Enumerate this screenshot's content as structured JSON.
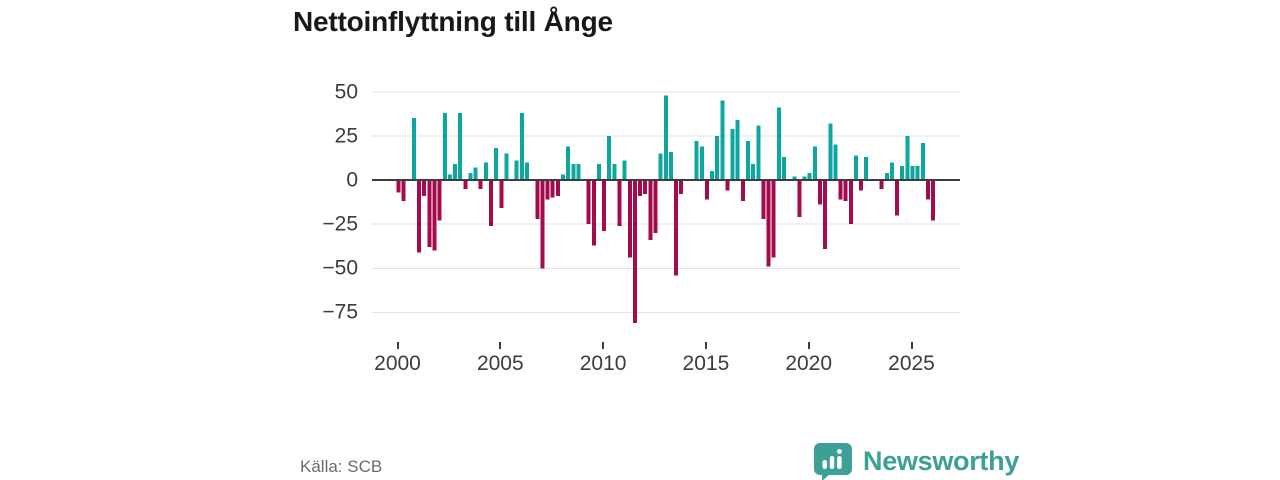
{
  "title": "Nettoinflyttning till Ånge",
  "source": "Källa: SCB",
  "branding": {
    "name": "Newsworthy",
    "icon": "newsworthy-logo-icon",
    "wordmark_color": "#3da096",
    "icon_color": "#3da096"
  },
  "chart_data": {
    "type": "bar",
    "title": "Nettoinflyttning till Ånge",
    "xlabel": "",
    "ylabel": "",
    "frequency": "quarterly",
    "start_period": "2000 Q1",
    "end_period": "2026 Q1",
    "values": [
      -7,
      -12,
      0,
      35,
      -41,
      -9,
      -38,
      -40,
      -23,
      38,
      3,
      9,
      38,
      -5,
      4,
      7,
      -5,
      10,
      -26,
      18,
      -16,
      15,
      0,
      11,
      38,
      10,
      0,
      -22,
      -50,
      -11,
      -10,
      -9,
      3,
      19,
      9,
      9,
      0,
      -25,
      -37,
      9,
      -29,
      25,
      9,
      -26,
      11,
      -44,
      -81,
      -9,
      -8,
      -34,
      -30,
      15,
      48,
      16,
      -54,
      -8,
      0,
      0,
      22,
      19,
      -11,
      5,
      25,
      45,
      -6,
      29,
      34,
      -12,
      22,
      9,
      31,
      -22,
      -49,
      -44,
      41,
      13,
      0,
      2,
      -21,
      2,
      4,
      19,
      -14,
      -39,
      32,
      20,
      -11,
      -12,
      -25,
      14,
      -6,
      13,
      0,
      0,
      -5,
      4,
      10,
      -20,
      8,
      25,
      8,
      8,
      21,
      -11,
      -23
    ],
    "y_tick_values": [
      50,
      25,
      0,
      -25,
      -50,
      -75
    ],
    "y_tick_labels": [
      "50",
      "25",
      "0",
      "−25",
      "−50",
      "−75"
    ],
    "x_tick_years": [
      2000,
      2005,
      2010,
      2015,
      2020,
      2025
    ],
    "x_tick_labels": [
      "2000",
      "2005",
      "2010",
      "2015",
      "2020",
      "2025"
    ],
    "ylim": [
      -85,
      54
    ],
    "grid": "horizontal",
    "legend": "none",
    "positive_color": "#0ca7a0",
    "negative_color": "#a40a4c",
    "gridline_color": "#e2e2e2",
    "zero_line_color": "#3c3c3c",
    "axis_text_color": "#3c3c3c"
  }
}
